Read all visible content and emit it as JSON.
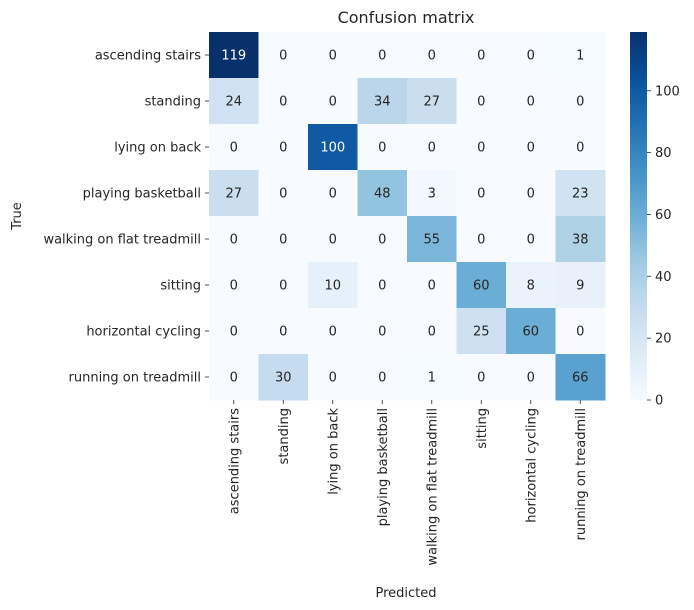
{
  "chart_data": {
    "type": "heatmap",
    "title": "Confusion matrix",
    "xlabel": "Predicted",
    "ylabel": "True",
    "row_labels": [
      "ascending stairs",
      "standing",
      "lying on back",
      "playing basketball",
      "walking on flat treadmill",
      "sitting",
      "horizontal cycling",
      "running on treadmill"
    ],
    "col_labels": [
      "ascending stairs",
      "standing",
      "lying on back",
      "playing basketball",
      "walking on flat treadmill",
      "sitting",
      "horizontal cycling",
      "running on treadmill"
    ],
    "values": [
      [
        119,
        0,
        0,
        0,
        0,
        0,
        0,
        1
      ],
      [
        24,
        0,
        0,
        34,
        27,
        0,
        0,
        0
      ],
      [
        0,
        0,
        100,
        0,
        0,
        0,
        0,
        0
      ],
      [
        27,
        0,
        0,
        48,
        3,
        0,
        0,
        23
      ],
      [
        0,
        0,
        0,
        0,
        55,
        0,
        0,
        38
      ],
      [
        0,
        0,
        10,
        0,
        0,
        60,
        8,
        9
      ],
      [
        0,
        0,
        0,
        0,
        0,
        25,
        60,
        0
      ],
      [
        0,
        30,
        0,
        0,
        1,
        0,
        0,
        66
      ]
    ],
    "colormap": "Blues",
    "colorbar": {
      "min": 0,
      "max": 119,
      "ticks": [
        0,
        20,
        40,
        60,
        80,
        100
      ]
    },
    "colors": {
      "low": "#f7fbff",
      "high": "#08306b",
      "text_dark": "#262626",
      "text_light": "#ffffff"
    }
  }
}
